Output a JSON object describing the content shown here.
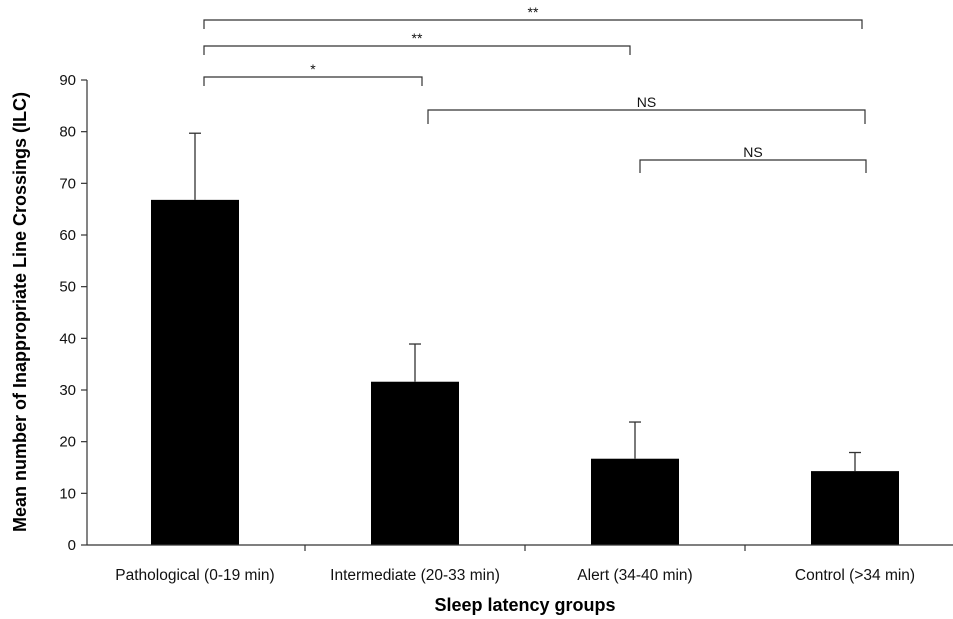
{
  "chart_data": {
    "type": "bar",
    "title": "",
    "xlabel": "Sleep latency groups",
    "ylabel": "Mean number of Inappropriate Line Crossings (ILC)",
    "ylim": [
      0,
      90
    ],
    "yticks": [
      0,
      10,
      20,
      30,
      40,
      50,
      60,
      70,
      80,
      90
    ],
    "categories": [
      "Pathological (0-19 min)",
      "Intermediate (20-33 min)",
      "Alert (34-40 min)",
      "Control (>34 min)"
    ],
    "values": [
      66.8,
      31.6,
      16.7,
      14.3
    ],
    "error_upper": [
      79.7,
      38.9,
      23.8,
      17.9
    ],
    "bar_color": "#000000",
    "grid": false,
    "legend": "none",
    "significance": [
      {
        "from": 0,
        "to": 3,
        "label": "**"
      },
      {
        "from": 0,
        "to": 2,
        "label": "**"
      },
      {
        "from": 0,
        "to": 1,
        "label": "*"
      },
      {
        "from": 1,
        "to": 3,
        "label": "NS"
      },
      {
        "from": 2,
        "to": 3,
        "label": "NS"
      }
    ]
  }
}
